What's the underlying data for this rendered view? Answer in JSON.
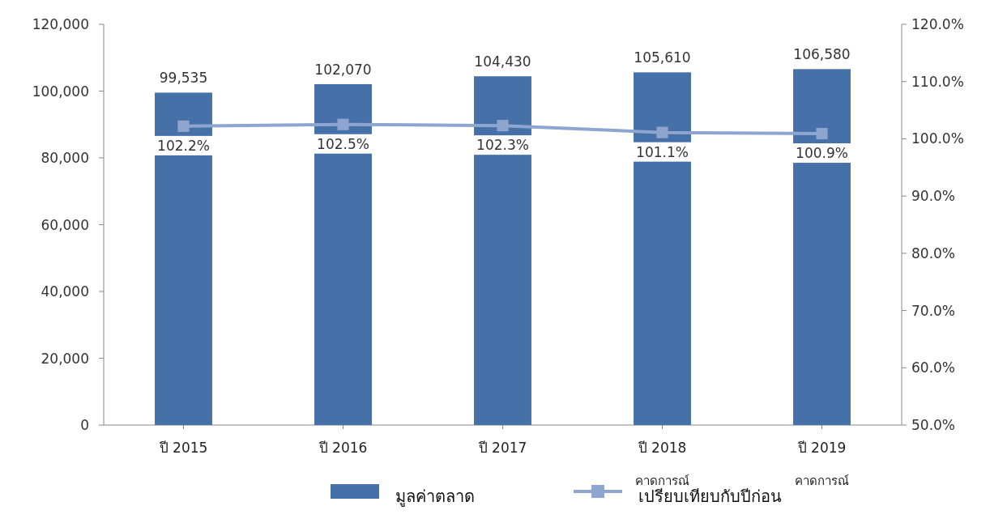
{
  "chart_data": {
    "type": "bar",
    "categories": [
      "ปี 2015",
      "ปี 2016",
      "ปี 2017",
      "ปี 2018\nคาดการณ์",
      "ปี 2019\nคาดการณ์"
    ],
    "series": [
      {
        "name": "มูลค่าตลาด",
        "color": "#4670a8",
        "values": [
          99535,
          102070,
          104430,
          105610,
          106580
        ],
        "value_labels": [
          "99,535",
          "102,070",
          "104,430",
          "105,610",
          "106,580"
        ]
      },
      {
        "name": "เปรียบเทียบกับปีก่อน",
        "type": "line",
        "axis": "y2",
        "color": "#8ea6cf",
        "marker": "square",
        "values": [
          102.2,
          102.5,
          102.3,
          101.1,
          100.9
        ],
        "value_labels": [
          "102.2%",
          "102.5%",
          "102.3%",
          "101.1%",
          "100.9%"
        ]
      }
    ],
    "ylim": [
      0,
      120000
    ],
    "yticks": [
      {
        "value": 0,
        "label": "0"
      },
      {
        "value": 20000,
        "label": "20,000"
      },
      {
        "value": 40000,
        "label": "40,000"
      },
      {
        "value": 60000,
        "label": "60,000"
      },
      {
        "value": 80000,
        "label": "80,000"
      },
      {
        "value": 100000,
        "label": "100,000"
      },
      {
        "value": 120000,
        "label": "120,000"
      }
    ],
    "y2lim": [
      50,
      120
    ],
    "y2ticks": [
      {
        "value": 50,
        "label": "50.0%"
      },
      {
        "value": 60,
        "label": "60.0%"
      },
      {
        "value": 70,
        "label": "70.0%"
      },
      {
        "value": 80,
        "label": "80.0%"
      },
      {
        "value": 90,
        "label": "90.0%"
      },
      {
        "value": 100,
        "label": "100.0%"
      },
      {
        "value": 110,
        "label": "110.0%"
      },
      {
        "value": 120,
        "label": "120.0%"
      }
    ],
    "legend": "bottom",
    "grid": false
  }
}
